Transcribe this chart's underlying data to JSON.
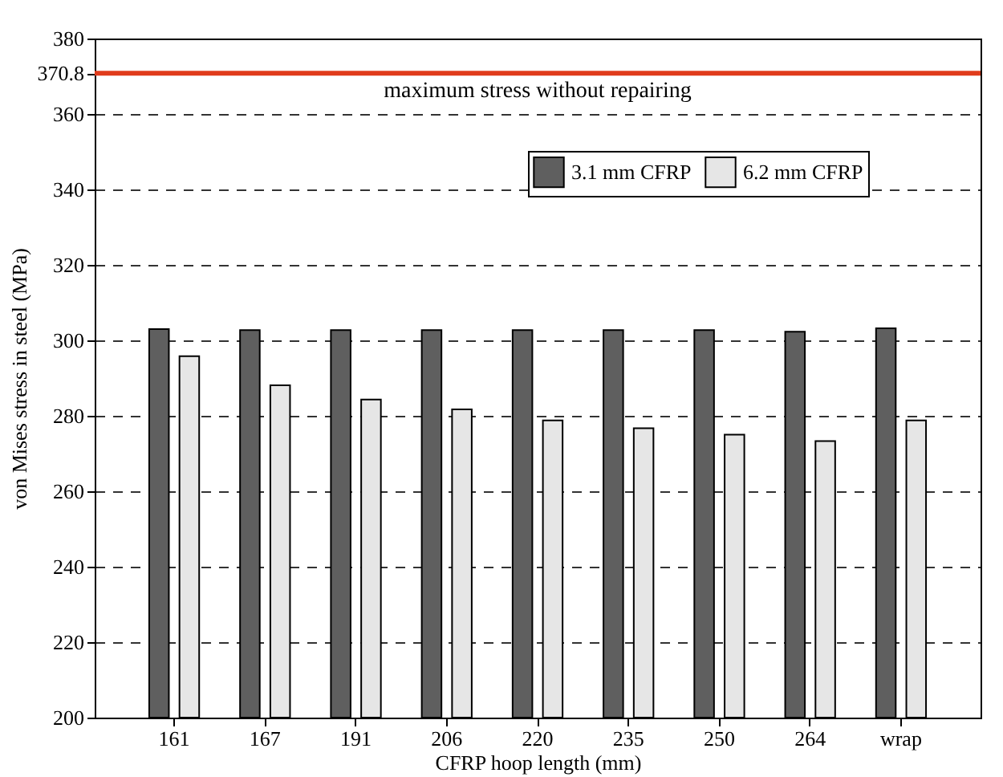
{
  "chart_data": {
    "type": "bar",
    "xlabel": "CFRP hoop length (mm)",
    "ylabel": "von Mises stress in steel (MPa)",
    "categories": [
      "161",
      "167",
      "191",
      "206",
      "220",
      "235",
      "250",
      "264",
      "wrap"
    ],
    "series": [
      {
        "name": "3.1 mm CFRP",
        "color": "#5f5f5f",
        "values": [
          303,
          302.7,
          302.7,
          302.7,
          302.7,
          302.7,
          302.7,
          302.3,
          303.2
        ]
      },
      {
        "name": "6.2 mm CFRP",
        "color": "#e6e6e6",
        "values": [
          295.8,
          288.1,
          284.3,
          281.7,
          278.8,
          276.7,
          275,
          273.3,
          278.8
        ]
      }
    ],
    "ylim": [
      200,
      380
    ],
    "yticks": [
      200,
      220,
      240,
      260,
      280,
      300,
      320,
      340,
      360,
      370.8,
      380
    ],
    "ref_lines": [
      {
        "axis": "y",
        "value": 370.8,
        "label": "maximum stress without repairing",
        "color": "#e03c1c"
      }
    ],
    "grid": "y",
    "legend": "top right"
  }
}
